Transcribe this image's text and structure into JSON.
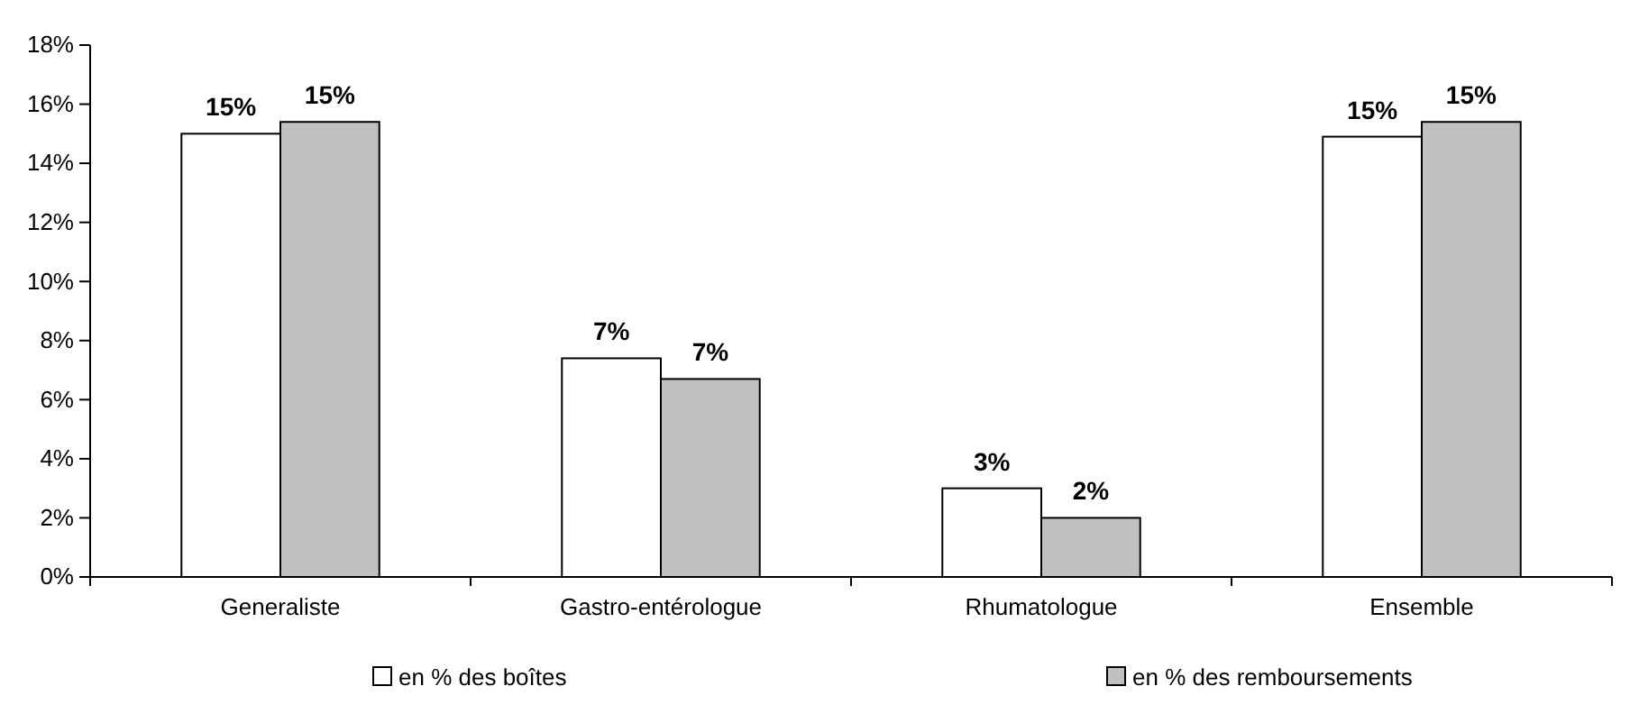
{
  "chart_data": {
    "type": "bar",
    "categories": [
      "Generaliste",
      "Gastro-entérologue",
      "Rhumatologue",
      "Ensemble"
    ],
    "series": [
      {
        "name": "en % des boîtes",
        "color": "#ffffff",
        "values": [
          15.0,
          7.4,
          3.0,
          14.9
        ],
        "value_labels": [
          "15%",
          "7%",
          "3%",
          "15%"
        ]
      },
      {
        "name": "en % des remboursements",
        "color": "#c0c0c0",
        "values": [
          15.4,
          6.7,
          2.0,
          15.4
        ],
        "value_labels": [
          "15%",
          "7%",
          "2%",
          "15%"
        ]
      }
    ],
    "ylim": [
      0,
      18
    ],
    "yticks": [
      {
        "value": 0,
        "label": "0%"
      },
      {
        "value": 2,
        "label": "2%"
      },
      {
        "value": 4,
        "label": "4%"
      },
      {
        "value": 6,
        "label": "6%"
      },
      {
        "value": 8,
        "label": "8%"
      },
      {
        "value": 10,
        "label": "10%"
      },
      {
        "value": 12,
        "label": "12%"
      },
      {
        "value": 14,
        "label": "14%"
      },
      {
        "value": 16,
        "label": "16%"
      },
      {
        "value": 18,
        "label": "18%"
      }
    ],
    "legend": "bottom",
    "grid": false
  }
}
